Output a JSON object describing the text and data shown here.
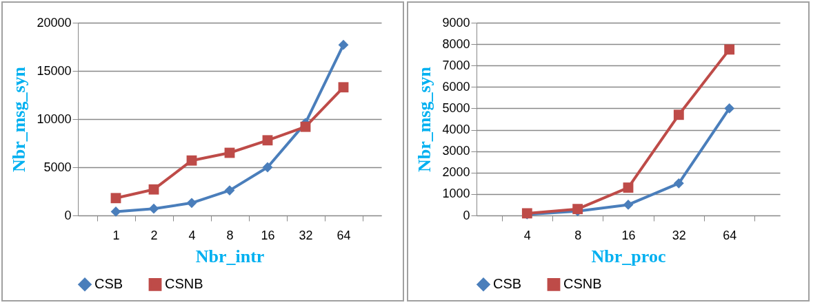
{
  "chart_data": [
    {
      "type": "line",
      "xlabel": "Nbr_intr",
      "ylabel": "Nbr_msg_syn",
      "categories": [
        "1",
        "2",
        "4",
        "8",
        "16",
        "32",
        "64"
      ],
      "ylim": [
        0,
        20000
      ],
      "yticks": [
        0,
        5000,
        10000,
        15000,
        20000
      ],
      "grid": "y",
      "legend": "bottom",
      "series": [
        {
          "name": "CSB",
          "color": "#4a7ebb",
          "marker": "diamond",
          "values": [
            400,
            700,
            1300,
            2600,
            5000,
            9600,
            17700
          ]
        },
        {
          "name": "CSNB",
          "color": "#be4b48",
          "marker": "square",
          "values": [
            1800,
            2700,
            5700,
            6500,
            7800,
            9200,
            13300
          ]
        }
      ]
    },
    {
      "type": "line",
      "xlabel": "Nbr_proc",
      "ylabel": "Nbr_msg_syn",
      "categories": [
        "4",
        "8",
        "16",
        "32",
        "64"
      ],
      "ylim": [
        0,
        9000
      ],
      "yticks": [
        0,
        1000,
        2000,
        3000,
        4000,
        5000,
        6000,
        7000,
        8000,
        9000
      ],
      "grid": "y",
      "legend": "bottom",
      "series": [
        {
          "name": "CSB",
          "color": "#4a7ebb",
          "marker": "diamond",
          "values": [
            50,
            200,
            500,
            1500,
            5000
          ]
        },
        {
          "name": "CSNB",
          "color": "#be4b48",
          "marker": "square",
          "values": [
            100,
            300,
            1300,
            4700,
            7750
          ]
        }
      ]
    }
  ]
}
